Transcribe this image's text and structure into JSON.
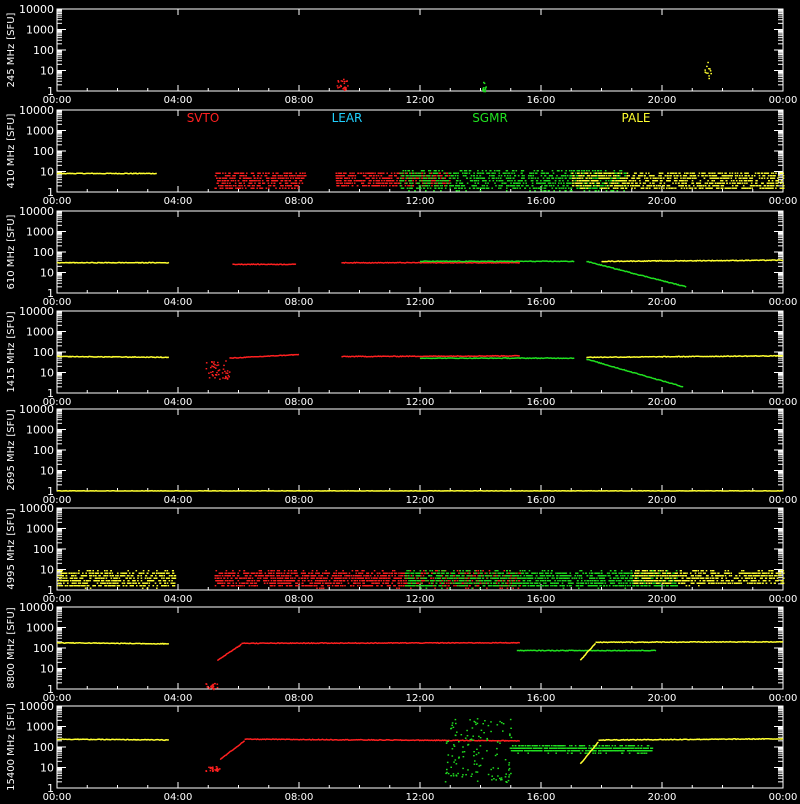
{
  "chart_data": {
    "type": "scatter",
    "x_ticks": [
      "00:00",
      "04:00",
      "08:00",
      "12:00",
      "16:00",
      "20:00",
      "00:00"
    ],
    "x_range_hours": [
      0,
      24
    ],
    "y_scale": "log",
    "y_range": [
      1,
      10000
    ],
    "y_ticks": [
      "1",
      "10",
      "100",
      "1000",
      "10000"
    ],
    "y_unit": "[SFU]",
    "grid": false,
    "legend_placement": "top of second panel",
    "stations": [
      {
        "name": "SVTO",
        "color": "#ff2020"
      },
      {
        "name": "LEAR",
        "color": "#20d0ff"
      },
      {
        "name": "SGMR",
        "color": "#20e020"
      },
      {
        "name": "PALE",
        "color": "#ffff30"
      }
    ],
    "panels": [
      {
        "label": "245 MHz",
        "segments": [
          {
            "station": "SVTO",
            "style": "noise",
            "x": [
              9.2,
              9.6
            ],
            "y": [
              1,
              4
            ]
          },
          {
            "station": "SGMR",
            "style": "noise",
            "x": [
              14.0,
              14.2
            ],
            "y": [
              1,
              3
            ]
          },
          {
            "station": "PALE",
            "style": "noise",
            "x": [
              21.4,
              21.6
            ],
            "y": [
              2,
              30
            ]
          }
        ]
      },
      {
        "label": "410 MHz",
        "segments": [
          {
            "station": "PALE",
            "style": "line",
            "x": [
              0,
              3.3
            ],
            "y": [
              8,
              8
            ]
          },
          {
            "station": "SVTO",
            "style": "band",
            "x": [
              5.2,
              8.2
            ],
            "y": [
              1.5,
              10
            ]
          },
          {
            "station": "SVTO",
            "style": "band",
            "x": [
              9.2,
              13.0
            ],
            "y": [
              2,
              10
            ]
          },
          {
            "station": "SGMR",
            "style": "band",
            "x": [
              11.3,
              18.8
            ],
            "y": [
              1.3,
              12
            ]
          },
          {
            "station": "PALE",
            "style": "band",
            "x": [
              17.0,
              24.0
            ],
            "y": [
              1.5,
              10
            ]
          }
        ]
      },
      {
        "label": "610 MHz",
        "segments": [
          {
            "station": "PALE",
            "style": "line",
            "x": [
              0,
              3.7
            ],
            "y": [
              30,
              30
            ]
          },
          {
            "station": "SVTO",
            "style": "line",
            "x": [
              5.8,
              7.9
            ],
            "y": [
              25,
              25
            ]
          },
          {
            "station": "SVTO",
            "style": "line",
            "x": [
              9.4,
              15.3
            ],
            "y": [
              30,
              30
            ]
          },
          {
            "station": "SGMR",
            "style": "line",
            "x": [
              12.0,
              17.1
            ],
            "y": [
              35,
              35
            ]
          },
          {
            "station": "SGMR",
            "style": "line",
            "x": [
              17.5,
              20.8
            ],
            "y": [
              35,
              2
            ]
          },
          {
            "station": "PALE",
            "style": "line",
            "x": [
              18.0,
              24.0
            ],
            "y": [
              35,
              40
            ]
          }
        ]
      },
      {
        "label": "1415 MHz",
        "segments": [
          {
            "station": "PALE",
            "style": "line",
            "x": [
              0,
              3.7
            ],
            "y": [
              60,
              55
            ]
          },
          {
            "station": "SVTO",
            "style": "noise",
            "x": [
              4.9,
              5.7
            ],
            "y": [
              5,
              40
            ]
          },
          {
            "station": "SVTO",
            "style": "line",
            "x": [
              5.7,
              8.0
            ],
            "y": [
              50,
              75
            ]
          },
          {
            "station": "SVTO",
            "style": "line",
            "x": [
              9.4,
              15.3
            ],
            "y": [
              60,
              65
            ]
          },
          {
            "station": "SGMR",
            "style": "line",
            "x": [
              12.0,
              17.1
            ],
            "y": [
              50,
              50
            ]
          },
          {
            "station": "SGMR",
            "style": "line",
            "x": [
              17.5,
              20.7
            ],
            "y": [
              45,
              2
            ]
          },
          {
            "station": "PALE",
            "style": "line",
            "x": [
              17.5,
              24.0
            ],
            "y": [
              55,
              65
            ]
          }
        ]
      },
      {
        "label": "2695 MHz",
        "segments": [
          {
            "station": "PALE",
            "style": "line",
            "x": [
              0,
              24.0
            ],
            "y": [
              1,
              1
            ]
          }
        ]
      },
      {
        "label": "4995 MHz",
        "segments": [
          {
            "station": "PALE",
            "style": "band",
            "x": [
              0,
              3.9
            ],
            "y": [
              1.5,
              9
            ]
          },
          {
            "station": "SVTO",
            "style": "band",
            "x": [
              5.2,
              15.3
            ],
            "y": [
              1.5,
              9
            ]
          },
          {
            "station": "SGMR",
            "style": "band",
            "x": [
              11.5,
              20.5
            ],
            "y": [
              1.5,
              9
            ]
          },
          {
            "station": "PALE",
            "style": "band",
            "x": [
              19.0,
              24.0
            ],
            "y": [
              2,
              9
            ]
          }
        ]
      },
      {
        "label": "8800 MHz",
        "segments": [
          {
            "station": "PALE",
            "style": "line",
            "x": [
              0,
              3.7
            ],
            "y": [
              180,
              160
            ]
          },
          {
            "station": "SVTO",
            "style": "noise",
            "x": [
              4.9,
              5.3
            ],
            "y": [
              1,
              2
            ]
          },
          {
            "station": "SVTO",
            "style": "line",
            "x": [
              5.3,
              6.1
            ],
            "y": [
              25,
              150
            ]
          },
          {
            "station": "SVTO",
            "style": "line",
            "x": [
              6.1,
              15.3
            ],
            "y": [
              170,
              180
            ]
          },
          {
            "station": "SGMR",
            "style": "line",
            "x": [
              15.2,
              19.8
            ],
            "y": [
              75,
              75
            ]
          },
          {
            "station": "PALE",
            "style": "line",
            "x": [
              17.3,
              17.8
            ],
            "y": [
              25,
              170
            ]
          },
          {
            "station": "PALE",
            "style": "line",
            "x": [
              17.8,
              24.0
            ],
            "y": [
              190,
              200
            ]
          }
        ]
      },
      {
        "label": "15400 MHz",
        "segments": [
          {
            "station": "PALE",
            "style": "line",
            "x": [
              0,
              3.7
            ],
            "y": [
              240,
              220
            ]
          },
          {
            "station": "SVTO",
            "style": "noise",
            "x": [
              4.9,
              5.4
            ],
            "y": [
              7,
              12
            ]
          },
          {
            "station": "SVTO",
            "style": "line",
            "x": [
              5.4,
              6.2
            ],
            "y": [
              25,
              200
            ]
          },
          {
            "station": "SVTO",
            "style": "line",
            "x": [
              6.2,
              15.3
            ],
            "y": [
              240,
              200
            ]
          },
          {
            "station": "SGMR",
            "style": "noise",
            "x": [
              12.8,
              15.0
            ],
            "y": [
              2,
              3000
            ]
          },
          {
            "station": "SGMR",
            "style": "band",
            "x": [
              15.0,
              19.7
            ],
            "y": [
              60,
              120
            ]
          },
          {
            "station": "PALE",
            "style": "line",
            "x": [
              17.3,
              17.9
            ],
            "y": [
              15,
              180
            ]
          },
          {
            "station": "PALE",
            "style": "line",
            "x": [
              17.9,
              24.0
            ],
            "y": [
              220,
              250
            ]
          }
        ]
      }
    ]
  }
}
